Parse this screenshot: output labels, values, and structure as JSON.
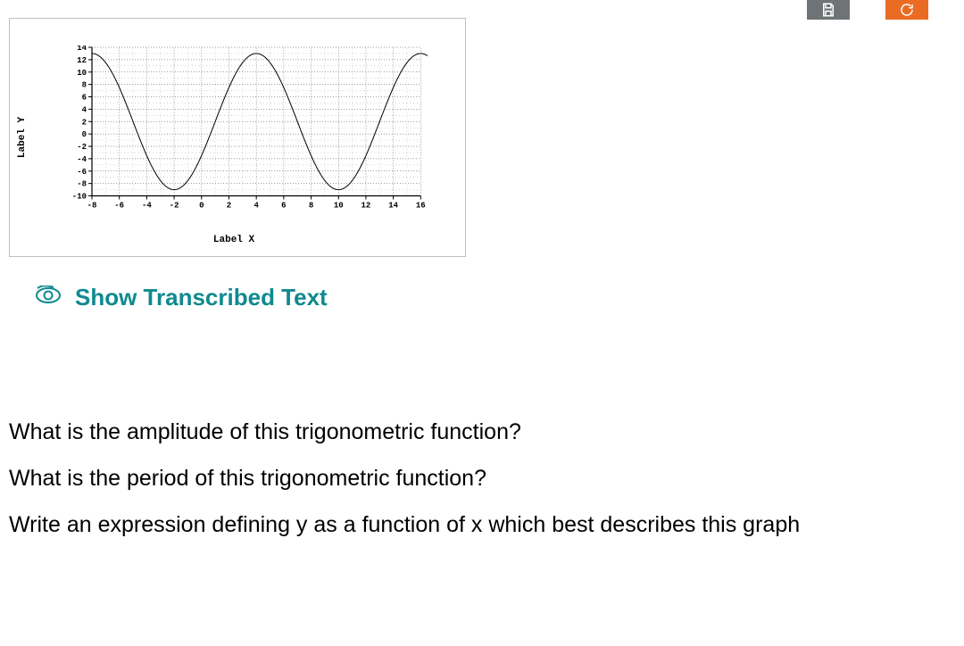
{
  "top_buttons": {
    "save_bg": "#6f7375",
    "refresh_bg": "#ea6c24",
    "icon_color": "#ffffff"
  },
  "chart": {
    "type": "line",
    "y_axis_label": "Label Y",
    "x_axis_label": "Label X",
    "xlim": [
      -8,
      16.5
    ],
    "ylim": [
      -10.5,
      14
    ],
    "xtick_start": -8,
    "xtick_end": 16,
    "xtick_step": 2,
    "ytick_start": -10,
    "ytick_end": 14,
    "ytick_step": 2,
    "minor_grid_step_x": 1,
    "minor_grid_step_y": 1,
    "amplitude": 11,
    "vertical_shift": 2,
    "period": 12,
    "phase_shift": -8,
    "line_color": "#000000",
    "line_width": 1,
    "axis_color": "#000000",
    "major_grid_color": "#000000",
    "major_grid_dash": "1 2",
    "minor_grid_color": "#000000",
    "minor_grid_dash": "1 3",
    "background_color": "#ffffff",
    "label_font": "Courier New",
    "label_fontsize": 11,
    "tick_fontsize": 9
  },
  "transcribed": {
    "label": "Show Transcribed Text",
    "color": "#0f8a8f"
  },
  "questions": {
    "q1": "What is the amplitude of this trigonometric function?",
    "q2": "What is the period of this trigonometric function?",
    "q3": "Write an expression defining y as a function of x which best describes this graph"
  }
}
